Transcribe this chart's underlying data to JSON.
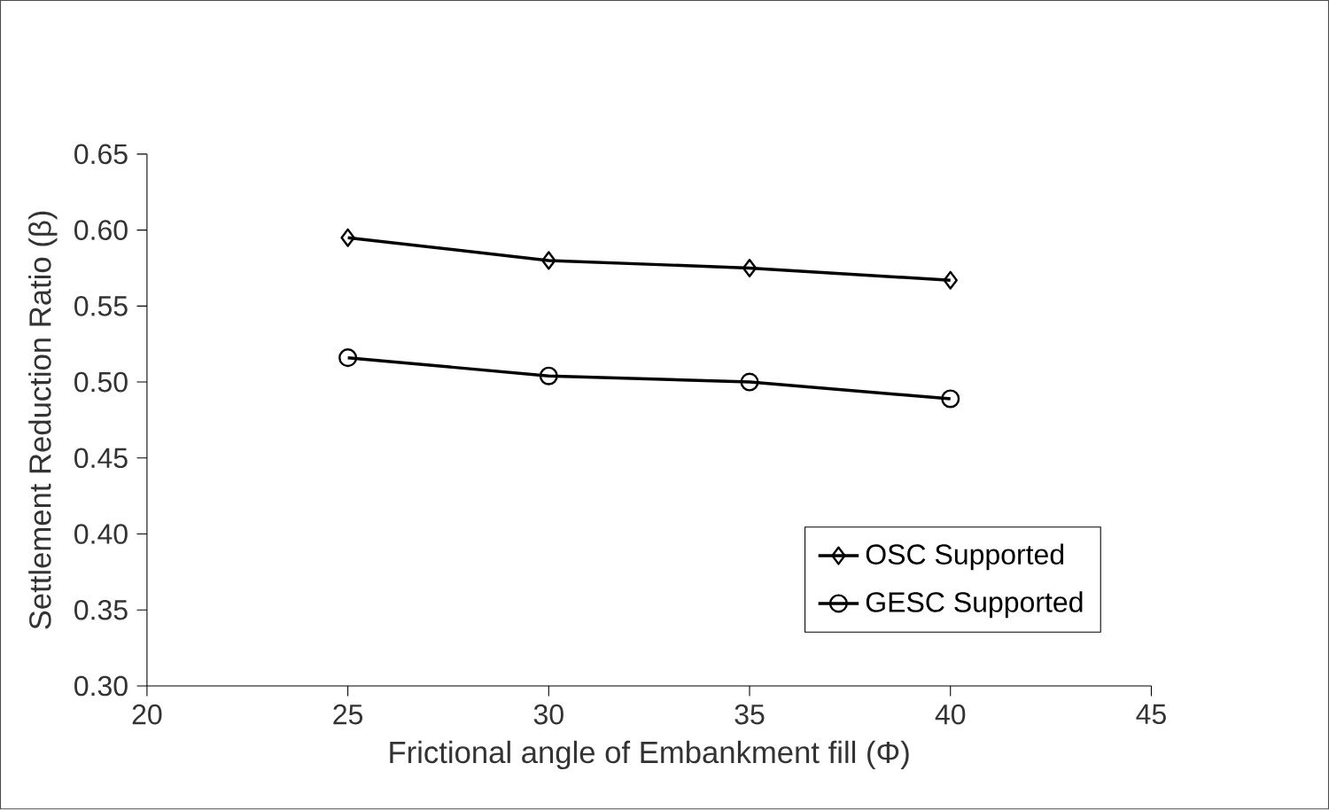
{
  "chart_data": {
    "type": "line",
    "xlabel": "Frictional angle of Embankment fill (Φ)",
    "ylabel": "Settlement Reduction Ratio (β)",
    "x": [
      25,
      30,
      35,
      40
    ],
    "series": [
      {
        "name": "OSC Supported",
        "color": "#000000",
        "marker": "diamond",
        "values": [
          0.595,
          0.58,
          0.575,
          0.567
        ]
      },
      {
        "name": "GESC Supported",
        "color": "#000000",
        "marker": "circle",
        "values": [
          0.516,
          0.504,
          0.5,
          0.489
        ]
      }
    ],
    "xlim": [
      20,
      45
    ],
    "xticks": [
      20,
      25,
      30,
      35,
      40,
      45
    ],
    "ylim": [
      0.3,
      0.65
    ],
    "yticks": [
      {
        "value": 0.3,
        "label": "0.30"
      },
      {
        "value": 0.35,
        "label": "0.35"
      },
      {
        "value": 0.4,
        "label": "0.40"
      },
      {
        "value": 0.45,
        "label": "0.45"
      },
      {
        "value": 0.5,
        "label": "0.50"
      },
      {
        "value": 0.55,
        "label": "0.55"
      },
      {
        "value": 0.6,
        "label": "0.60"
      },
      {
        "value": 0.65,
        "label": "0.65"
      }
    ],
    "grid": false,
    "legend": "right",
    "line_style": "solid"
  }
}
